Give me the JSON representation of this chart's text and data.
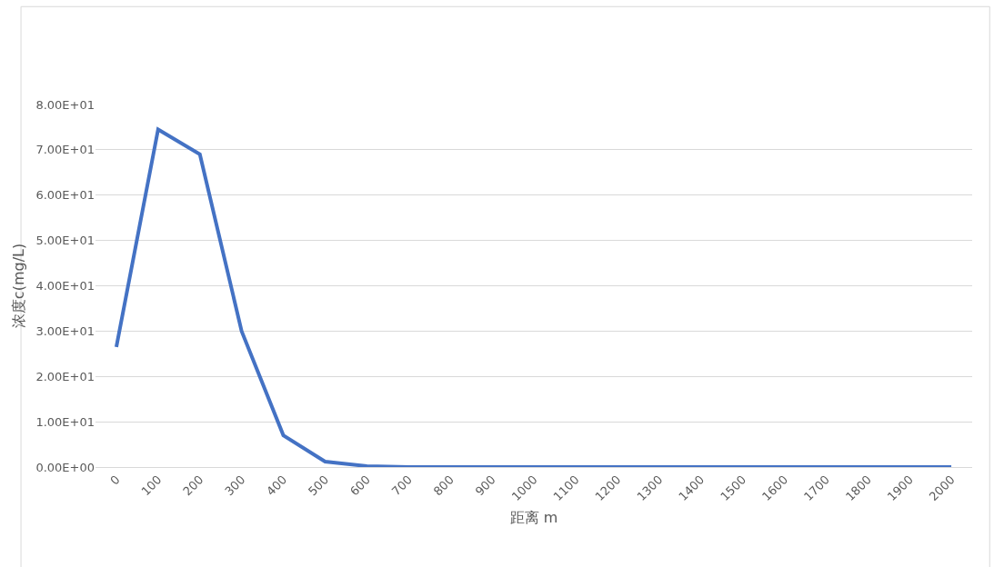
{
  "chart_data": {
    "type": "line",
    "xlabel": "距离 m",
    "ylabel": "浓度c(mg/L)",
    "categories": [
      "0",
      "100",
      "200",
      "300",
      "400",
      "500",
      "600",
      "700",
      "800",
      "900",
      "1000",
      "1100",
      "1200",
      "1300",
      "1400",
      "1500",
      "1600",
      "1700",
      "1800",
      "1900",
      "2000"
    ],
    "series": [
      {
        "color": "#4472c4",
        "values": [
          26.5,
          74.5,
          69,
          30,
          7,
          1.2,
          0.2,
          0,
          0,
          0,
          0,
          0,
          0,
          0,
          0,
          0,
          0,
          0,
          0,
          0,
          0
        ]
      }
    ],
    "ylim": [
      0,
      80
    ],
    "yticks": [
      {
        "value": 0,
        "label": "0.00E+00"
      },
      {
        "value": 10,
        "label": "1.00E+01"
      },
      {
        "value": 20,
        "label": "2.00E+01"
      },
      {
        "value": 30,
        "label": "3.00E+01"
      },
      {
        "value": 40,
        "label": "4.00E+01"
      },
      {
        "value": 50,
        "label": "5.00E+01"
      },
      {
        "value": 60,
        "label": "6.00E+01"
      },
      {
        "value": 70,
        "label": "7.00E+01"
      },
      {
        "value": 80,
        "label": "8.00E+01"
      }
    ],
    "grid": "y",
    "marker": "none",
    "line_style": "solid"
  }
}
